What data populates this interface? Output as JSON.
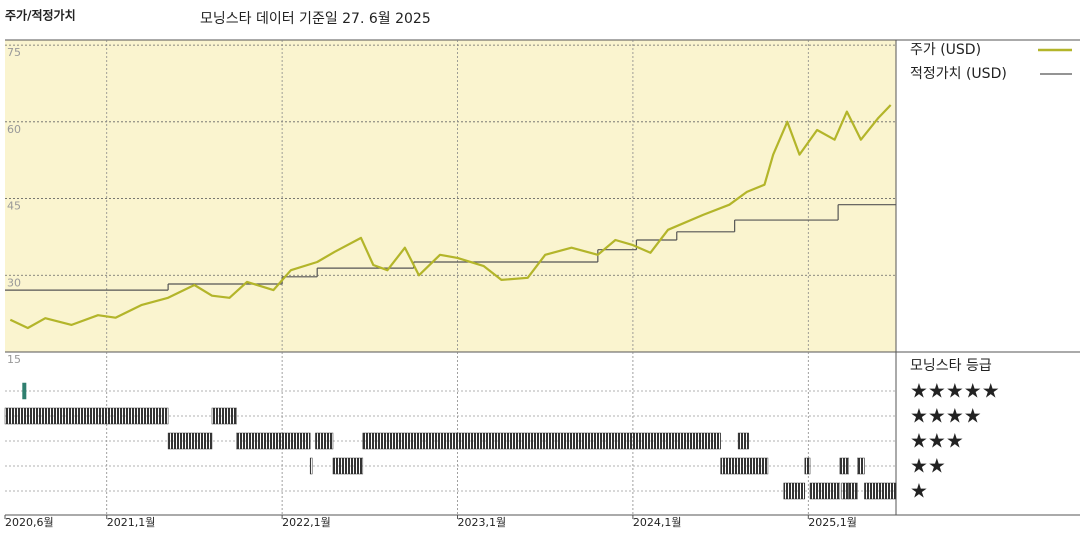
{
  "chart_data": {
    "type": "line",
    "title": "주가/적정가치",
    "subtitle": "모닝스타 데이터 기준일 27. 6월 2025",
    "xlim": [
      2020.42,
      2025.5
    ],
    "xticks": [
      {
        "value": 2020.42,
        "label": "2020,6월"
      },
      {
        "value": 2021.0,
        "label": "2021,1월"
      },
      {
        "value": 2022.0,
        "label": "2022,1월"
      },
      {
        "value": 2023.0,
        "label": "2023,1월"
      },
      {
        "value": 2024.0,
        "label": "2024,1월"
      },
      {
        "value": 2025.0,
        "label": "2025,1월"
      }
    ],
    "ylim": [
      15,
      76
    ],
    "yticks": [
      75,
      60,
      45,
      30,
      15
    ],
    "grid": true,
    "series": [
      {
        "name": "주가 (USD)",
        "color": "#b3b52a",
        "x": [
          2020.45,
          2020.55,
          2020.65,
          2020.8,
          2020.95,
          2021.05,
          2021.2,
          2021.35,
          2021.5,
          2021.6,
          2021.7,
          2021.8,
          2021.95,
          2022.05,
          2022.2,
          2022.3,
          2022.45,
          2022.52,
          2022.6,
          2022.7,
          2022.78,
          2022.9,
          2023.0,
          2023.15,
          2023.25,
          2023.4,
          2023.5,
          2023.65,
          2023.8,
          2023.9,
          2024.0,
          2024.1,
          2024.2,
          2024.4,
          2024.55,
          2024.65,
          2024.75,
          2024.8,
          2024.88,
          2024.95,
          2025.05,
          2025.15,
          2025.22,
          2025.3,
          2025.4,
          2025.47
        ],
        "values": [
          21.3,
          19.7,
          21.6,
          20.3,
          22.2,
          21.7,
          24.2,
          25.6,
          28.1,
          26,
          25.6,
          28.7,
          27.1,
          31,
          32.6,
          34.6,
          37.3,
          32,
          31,
          35.4,
          30,
          34,
          33.4,
          31.8,
          29.1,
          29.5,
          34,
          35.4,
          34,
          36.9,
          35.9,
          34.4,
          38.9,
          41.8,
          43.8,
          46.3,
          47.7,
          53.6,
          60,
          53.6,
          58.4,
          56.5,
          62,
          56.5,
          60.8,
          63.3
        ]
      },
      {
        "name": "적정가치 (USD)",
        "color": "#555555",
        "x": [
          2020.42,
          2021.35,
          2022.0,
          2022.2,
          2022.75,
          2023.8,
          2024.02,
          2024.25,
          2024.58,
          2025.17
        ],
        "values": [
          27.1,
          28.3,
          29.7,
          31.4,
          32.6,
          35,
          36.9,
          38.5,
          40.8,
          43.8
        ]
      }
    ],
    "ratings": {
      "title": "모닝스타 등급",
      "rows": [
        {
          "label": "★★★★★",
          "color": "#2f7f6f",
          "periods": [
            [
              2020.52,
              2020.54
            ]
          ]
        },
        {
          "label": "★★★★",
          "color": "#333333",
          "periods": [
            [
              2020.42,
              2021.35
            ],
            [
              2021.6,
              2021.74
            ]
          ]
        },
        {
          "label": "★★★",
          "color": "#333333",
          "periods": [
            [
              2021.35,
              2021.6
            ],
            [
              2021.74,
              2022.16
            ],
            [
              2022.19,
              2022.29
            ],
            [
              2022.46,
              2024.5
            ],
            [
              2024.6,
              2024.66
            ]
          ]
        },
        {
          "label": "★★",
          "color": "#333333",
          "periods": [
            [
              2022.16,
              2022.17
            ],
            [
              2022.29,
              2022.46
            ],
            [
              2024.5,
              2024.77
            ],
            [
              2024.98,
              2025.01
            ],
            [
              2025.18,
              2025.23
            ],
            [
              2025.28,
              2025.32
            ]
          ]
        },
        {
          "label": "★",
          "color": "#333333",
          "periods": [
            [
              2024.86,
              2024.98
            ],
            [
              2025.01,
              2025.18
            ],
            [
              2025.19,
              2025.23
            ],
            [
              2025.23,
              2025.28
            ],
            [
              2025.32,
              2025.5
            ]
          ]
        }
      ]
    }
  }
}
